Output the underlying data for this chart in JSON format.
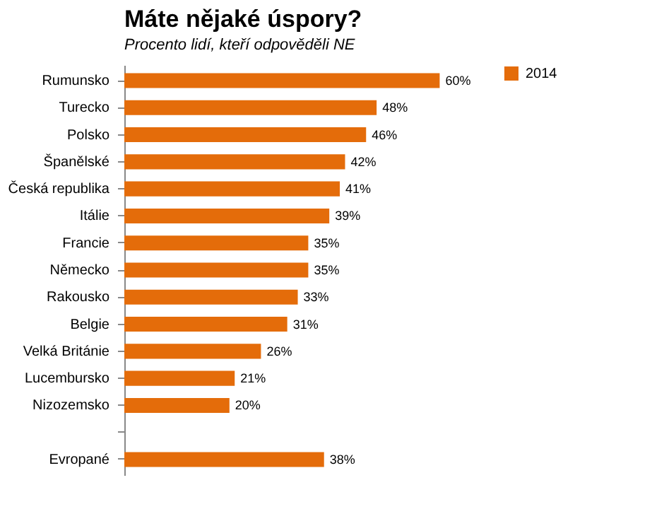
{
  "chart_data": {
    "type": "bar",
    "orientation": "horizontal",
    "title": "Máte nějaké úspory?",
    "subtitle": "Procento lidí, kteří odpověděli NE",
    "categories": [
      "Rumunsko",
      "Turecko",
      "Polsko",
      "Španělské",
      "Česká republika",
      "Itálie",
      "Francie",
      "Německo",
      "Rakousko",
      "Belgie",
      "Velká Británie",
      "Lucembursko",
      "Nizozemsko",
      null,
      "Evropané"
    ],
    "series": [
      {
        "name": "2014",
        "color": "#e46c0a",
        "values": [
          60,
          48,
          46,
          42,
          41,
          39,
          35,
          35,
          33,
          31,
          26,
          21,
          20,
          null,
          38
        ],
        "value_labels": [
          "60%",
          "48%",
          "46%",
          "42%",
          "41%",
          "39%",
          "35%",
          "35%",
          "33%",
          "31%",
          "26%",
          "21%",
          "20%",
          null,
          "38%"
        ]
      }
    ],
    "legend": "right"
  }
}
